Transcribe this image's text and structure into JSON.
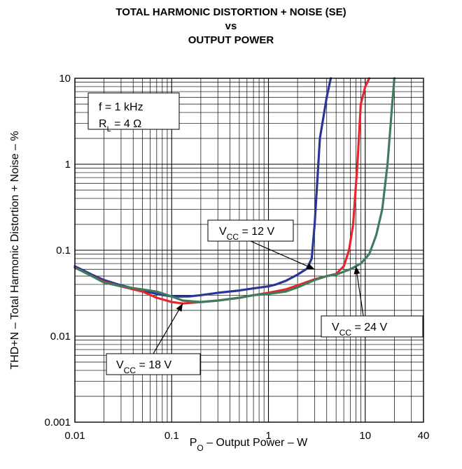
{
  "chart_data": {
    "type": "line",
    "title_lines": [
      "TOTAL HARMONIC DISTORTION + NOISE (SE)",
      "vs",
      "OUTPUT POWER"
    ],
    "xlabel": {
      "main": "P",
      "sub": "O",
      "rest": " – Output Power – W"
    },
    "ylabel": "THD+N – Total Harmonic Distortion + Noise – %",
    "x_scale": "log",
    "y_scale": "log",
    "xlim": [
      0.01,
      40
    ],
    "ylim": [
      0.001,
      10
    ],
    "x_ticks": [
      {
        "value": 0.01,
        "label": "0.01"
      },
      {
        "value": 0.1,
        "label": "0.1"
      },
      {
        "value": 1,
        "label": "1"
      },
      {
        "value": 10,
        "label": "10"
      },
      {
        "value": 40,
        "label": "40"
      }
    ],
    "y_ticks": [
      {
        "value": 10,
        "label": "10"
      },
      {
        "value": 1,
        "label": "1"
      },
      {
        "value": 0.1,
        "label": "0.1"
      },
      {
        "value": 0.01,
        "label": "0.01"
      },
      {
        "value": 0.001,
        "label": "0.001"
      }
    ],
    "grid": true,
    "conditions": {
      "line1": "f = 1 kHz",
      "line2_main": "R",
      "line2_sub": "L",
      "line2_rest": " = 4 Ω"
    },
    "series": [
      {
        "name": "V_CC = 12 V",
        "label_main": "V",
        "label_sub": "CC",
        "label_rest": " = 12 V",
        "color": "#2b3595",
        "x": [
          0.01,
          0.015,
          0.02,
          0.03,
          0.05,
          0.07,
          0.1,
          0.15,
          0.2,
          0.3,
          0.5,
          0.7,
          1.0,
          1.2,
          1.5,
          2.0,
          2.5,
          2.8,
          3.0,
          3.4,
          4.0,
          4.4
        ],
        "y": [
          0.065,
          0.052,
          0.045,
          0.039,
          0.034,
          0.031,
          0.029,
          0.029,
          0.03,
          0.032,
          0.034,
          0.036,
          0.038,
          0.04,
          0.044,
          0.052,
          0.061,
          0.08,
          0.2,
          2.0,
          6.0,
          10.0
        ]
      },
      {
        "name": "V_CC = 18 V",
        "label_main": "V",
        "label_sub": "CC",
        "label_rest": " = 18 V",
        "color": "#e8252b",
        "x": [
          0.01,
          0.015,
          0.02,
          0.03,
          0.05,
          0.07,
          0.1,
          0.13,
          0.2,
          0.3,
          0.5,
          0.7,
          1.0,
          1.5,
          2.0,
          3.0,
          4.0,
          5.0,
          6.0,
          6.8,
          7.5,
          8.3,
          9.0,
          10.0,
          11.0
        ],
        "y": [
          0.063,
          0.05,
          0.043,
          0.038,
          0.033,
          0.028,
          0.025,
          0.024,
          0.025,
          0.026,
          0.028,
          0.03,
          0.032,
          0.035,
          0.039,
          0.046,
          0.05,
          0.053,
          0.065,
          0.1,
          0.2,
          1.0,
          5.0,
          8.0,
          10.0
        ]
      },
      {
        "name": "V_CC = 24 V",
        "label_main": "V",
        "label_sub": "CC",
        "label_rest": " = 24 V",
        "color": "#3f7c5e",
        "x": [
          0.01,
          0.015,
          0.02,
          0.03,
          0.05,
          0.07,
          0.1,
          0.13,
          0.2,
          0.3,
          0.5,
          0.7,
          1.0,
          1.5,
          2.0,
          3.0,
          4.0,
          5.0,
          7.0,
          9.0,
          11.0,
          13.0,
          15.0,
          17.0,
          19.0,
          20.0
        ],
        "y": [
          0.063,
          0.05,
          0.042,
          0.038,
          0.035,
          0.033,
          0.029,
          0.026,
          0.025,
          0.026,
          0.028,
          0.03,
          0.031,
          0.033,
          0.037,
          0.045,
          0.05,
          0.052,
          0.06,
          0.07,
          0.09,
          0.15,
          0.3,
          1.0,
          5.0,
          10.0
        ]
      }
    ],
    "annotations": [
      {
        "series": 0,
        "x": 3.0,
        "y": 0.06
      },
      {
        "series": 1,
        "x": 0.13,
        "y": 0.024
      },
      {
        "series": 2,
        "x": 8.0,
        "y": 0.065
      }
    ]
  }
}
